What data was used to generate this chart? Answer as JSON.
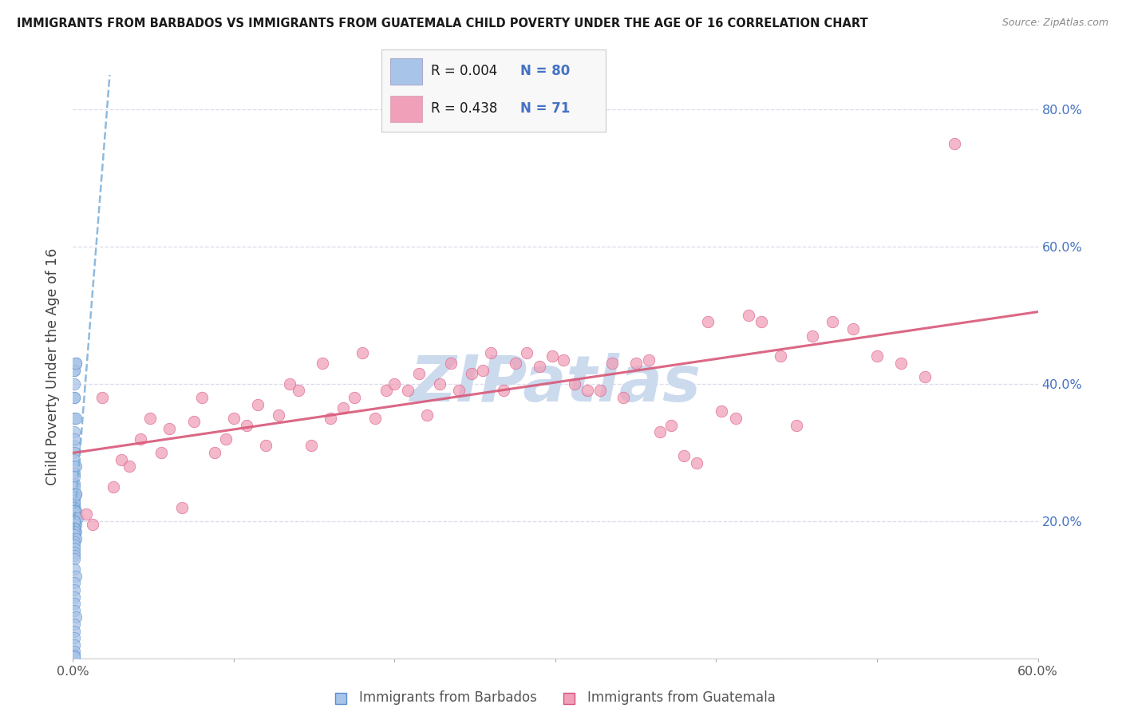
{
  "title": "IMMIGRANTS FROM BARBADOS VS IMMIGRANTS FROM GUATEMALA CHILD POVERTY UNDER THE AGE OF 16 CORRELATION CHART",
  "source": "Source: ZipAtlas.com",
  "ylabel": "Child Poverty Under the Age of 16",
  "xlabel_barbados": "Immigrants from Barbados",
  "xlabel_guatemala": "Immigrants from Guatemala",
  "R_barbados": 0.004,
  "N_barbados": 80,
  "R_guatemala": 0.438,
  "N_guatemala": 71,
  "color_barbados": "#a8c4e8",
  "color_barbados_dark": "#5b8ecf",
  "color_guatemala": "#f0a0b8",
  "color_guatemala_dark": "#d85080",
  "trendline_barbados": "#7aaed8",
  "trendline_guatemala": "#d85878",
  "xlim": [
    0.0,
    0.6
  ],
  "ylim": [
    0.0,
    0.85
  ],
  "background_color": "#ffffff",
  "grid_color": "#d8d8e8",
  "watermark": "ZIPatlas",
  "watermark_color": "#ccdaee",
  "barbados_x": [
    0.001,
    0.001,
    0.001,
    0.002,
    0.001,
    0.001,
    0.001,
    0.002,
    0.001,
    0.001,
    0.002,
    0.001,
    0.001,
    0.001,
    0.001,
    0.001,
    0.001,
    0.002,
    0.001,
    0.001,
    0.001,
    0.001,
    0.002,
    0.001,
    0.001,
    0.001,
    0.001,
    0.001,
    0.002,
    0.001,
    0.001,
    0.001,
    0.001,
    0.001,
    0.001,
    0.002,
    0.001,
    0.001,
    0.001,
    0.001,
    0.002,
    0.001,
    0.001,
    0.001,
    0.003,
    0.001,
    0.002,
    0.001,
    0.001,
    0.001,
    0.001,
    0.001,
    0.002,
    0.001,
    0.001,
    0.001,
    0.001,
    0.001,
    0.002,
    0.001,
    0.001,
    0.001,
    0.001,
    0.001,
    0.001,
    0.001,
    0.002,
    0.001,
    0.001,
    0.001,
    0.001,
    0.001,
    0.002,
    0.001,
    0.001,
    0.001,
    0.001,
    0.001,
    0.001,
    0.001
  ],
  "barbados_y": [
    0.42,
    0.38,
    0.35,
    0.43,
    0.42,
    0.4,
    0.38,
    0.35,
    0.33,
    0.31,
    0.43,
    0.32,
    0.3,
    0.29,
    0.28,
    0.27,
    0.255,
    0.28,
    0.265,
    0.25,
    0.24,
    0.235,
    0.24,
    0.225,
    0.22,
    0.235,
    0.23,
    0.225,
    0.24,
    0.215,
    0.21,
    0.205,
    0.22,
    0.215,
    0.205,
    0.215,
    0.2,
    0.195,
    0.215,
    0.21,
    0.205,
    0.2,
    0.195,
    0.215,
    0.205,
    0.2,
    0.195,
    0.19,
    0.185,
    0.195,
    0.2,
    0.19,
    0.185,
    0.18,
    0.175,
    0.19,
    0.185,
    0.18,
    0.175,
    0.17,
    0.165,
    0.16,
    0.155,
    0.15,
    0.145,
    0.13,
    0.12,
    0.11,
    0.1,
    0.09,
    0.08,
    0.07,
    0.06,
    0.05,
    0.04,
    0.03,
    0.02,
    0.01,
    0.005,
    0.002
  ],
  "guatemala_x": [
    0.008,
    0.012,
    0.018,
    0.025,
    0.03,
    0.035,
    0.042,
    0.048,
    0.055,
    0.06,
    0.068,
    0.075,
    0.08,
    0.088,
    0.095,
    0.1,
    0.108,
    0.115,
    0.12,
    0.128,
    0.135,
    0.14,
    0.148,
    0.155,
    0.16,
    0.168,
    0.175,
    0.18,
    0.188,
    0.195,
    0.2,
    0.208,
    0.215,
    0.22,
    0.228,
    0.235,
    0.24,
    0.248,
    0.255,
    0.26,
    0.268,
    0.275,
    0.282,
    0.29,
    0.298,
    0.305,
    0.312,
    0.32,
    0.328,
    0.335,
    0.342,
    0.35,
    0.358,
    0.365,
    0.372,
    0.38,
    0.388,
    0.395,
    0.403,
    0.412,
    0.42,
    0.428,
    0.44,
    0.45,
    0.46,
    0.472,
    0.485,
    0.5,
    0.515,
    0.53,
    0.548
  ],
  "guatemala_y": [
    0.21,
    0.195,
    0.38,
    0.25,
    0.29,
    0.28,
    0.32,
    0.35,
    0.3,
    0.335,
    0.22,
    0.345,
    0.38,
    0.3,
    0.32,
    0.35,
    0.34,
    0.37,
    0.31,
    0.355,
    0.4,
    0.39,
    0.31,
    0.43,
    0.35,
    0.365,
    0.38,
    0.445,
    0.35,
    0.39,
    0.4,
    0.39,
    0.415,
    0.355,
    0.4,
    0.43,
    0.39,
    0.415,
    0.42,
    0.445,
    0.39,
    0.43,
    0.445,
    0.425,
    0.44,
    0.435,
    0.4,
    0.39,
    0.39,
    0.43,
    0.38,
    0.43,
    0.435,
    0.33,
    0.34,
    0.295,
    0.285,
    0.49,
    0.36,
    0.35,
    0.5,
    0.49,
    0.44,
    0.34,
    0.47,
    0.49,
    0.48,
    0.44,
    0.43,
    0.41,
    0.75
  ]
}
